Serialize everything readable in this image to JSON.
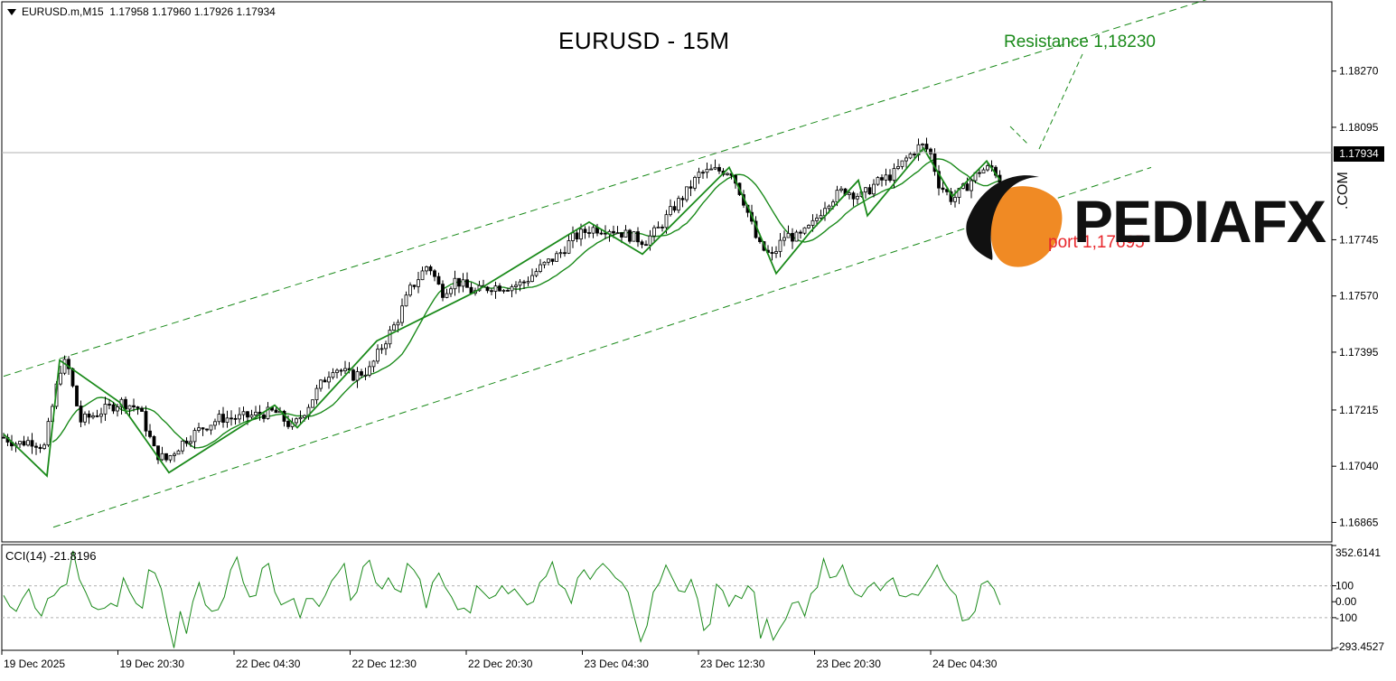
{
  "header": {
    "symbol_info": "EURUSD.m,M15  1.17958 1.17960 1.17926 1.17934",
    "title": "EURUSD - 15M"
  },
  "annotations": {
    "resistance": "Resistance 1,18230",
    "support": "port 1,17695"
  },
  "logo": {
    "brand": "PEDIAFX",
    "suffix": ".COM",
    "accent_color": "#f08a24"
  },
  "indicator": {
    "label": "CCI(14) -21.8196"
  },
  "current_price": "1.17934",
  "colors": {
    "bull": "#ffffff",
    "bear": "#000000",
    "wick": "#000000",
    "ma": "#1a8a1a",
    "channel": "#1a8a1a",
    "cci": "#1a8a1a",
    "resistance": "#1a8a1a",
    "support": "#e8262b"
  },
  "chart_data": [
    {
      "type": "candlestick",
      "title": "EURUSD - 15M",
      "price_axis_ticks": [
        "1.18270",
        "1.18095",
        "1.17934",
        "1.17745",
        "1.17570",
        "1.17395",
        "1.17215",
        "1.17040",
        "1.16865"
      ],
      "time_axis_labels": [
        "19 Dec 2025",
        "19 Dec 20:30",
        "22 Dec 04:30",
        "22 Dec 12:30",
        "22 Dec 20:30",
        "23 Dec 04:30",
        "23 Dec 12:30",
        "23 Dec 20:30",
        "24 Dec 04:30"
      ],
      "ylim": [
        1.1681,
        1.1848
      ],
      "last_price": 1.17934,
      "key_levels": {
        "resistance": 1.1823,
        "support": 1.17695
      },
      "price_path": [
        [
          0,
          1.1713
        ],
        [
          15,
          1.1711
        ],
        [
          30,
          1.1712
        ],
        [
          45,
          1.171
        ],
        [
          58,
          1.1728
        ],
        [
          65,
          1.1737
        ],
        [
          72,
          1.1734
        ],
        [
          85,
          1.1718
        ],
        [
          100,
          1.172
        ],
        [
          115,
          1.1722
        ],
        [
          130,
          1.1724
        ],
        [
          150,
          1.1722
        ],
        [
          168,
          1.1708
        ],
        [
          180,
          1.1706
        ],
        [
          200,
          1.1712
        ],
        [
          220,
          1.1716
        ],
        [
          240,
          1.1719
        ],
        [
          260,
          1.1719
        ],
        [
          280,
          1.172
        ],
        [
          300,
          1.1721
        ],
        [
          320,
          1.1716
        ],
        [
          335,
          1.1722
        ],
        [
          350,
          1.1729
        ],
        [
          365,
          1.1735
        ],
        [
          385,
          1.1732
        ],
        [
          405,
          1.1734
        ],
        [
          420,
          1.1742
        ],
        [
          435,
          1.1749
        ],
        [
          450,
          1.1759
        ],
        [
          470,
          1.1767
        ],
        [
          485,
          1.1758
        ],
        [
          500,
          1.1762
        ],
        [
          520,
          1.1758
        ],
        [
          540,
          1.176
        ],
        [
          560,
          1.176
        ],
        [
          575,
          1.1761
        ],
        [
          595,
          1.1766
        ],
        [
          615,
          1.177
        ],
        [
          630,
          1.1775
        ],
        [
          650,
          1.1778
        ],
        [
          670,
          1.1778
        ],
        [
          690,
          1.1776
        ],
        [
          710,
          1.1774
        ],
        [
          725,
          1.1778
        ],
        [
          740,
          1.1784
        ],
        [
          755,
          1.1789
        ],
        [
          770,
          1.1795
        ],
        [
          785,
          1.1796
        ],
        [
          805,
          1.1796
        ],
        [
          820,
          1.1786
        ],
        [
          835,
          1.1773
        ],
        [
          850,
          1.1769
        ],
        [
          865,
          1.1776
        ],
        [
          880,
          1.1775
        ],
        [
          895,
          1.1779
        ],
        [
          910,
          1.1786
        ],
        [
          930,
          1.179
        ],
        [
          950,
          1.1788
        ],
        [
          965,
          1.1792
        ],
        [
          985,
          1.1795
        ],
        [
          1000,
          1.18
        ],
        [
          1015,
          1.1804
        ],
        [
          1025,
          1.1802
        ],
        [
          1035,
          1.1792
        ],
        [
          1050,
          1.1787
        ],
        [
          1065,
          1.1791
        ],
        [
          1080,
          1.1796
        ],
        [
          1095,
          1.1797
        ],
        [
          1103,
          1.1793
        ]
      ],
      "zigzag": [
        [
          0,
          1.1714
        ],
        [
          48,
          1.1701
        ],
        [
          62,
          1.1737
        ],
        [
          128,
          1.1724
        ],
        [
          183,
          1.1702
        ],
        [
          300,
          1.1723
        ],
        [
          325,
          1.1716
        ],
        [
          413,
          1.1743
        ],
        [
          520,
          1.1758
        ],
        [
          648,
          1.178
        ],
        [
          707,
          1.177
        ],
        [
          803,
          1.1797
        ],
        [
          825,
          1.1784
        ],
        [
          855,
          1.1764
        ],
        [
          893,
          1.1777
        ],
        [
          946,
          1.1793
        ],
        [
          956,
          1.1782
        ],
        [
          1018,
          1.1803
        ],
        [
          1050,
          1.1788
        ],
        [
          1088,
          1.1799
        ],
        [
          1103,
          1.1793
        ]
      ],
      "channel": {
        "upper": [
          [
            0,
            1.1732
          ],
          [
            1340,
            1.185
          ]
        ],
        "lower": [
          [
            55,
            1.1685
          ],
          [
            1270,
            1.1797
          ]
        ],
        "lower_bound_dashed_end": [
          1270,
          1.1797
        ]
      }
    },
    {
      "type": "line",
      "title": "CCI(14) -21.8196",
      "series": [
        {
          "values": [
            40,
            -30,
            -60,
            20,
            80,
            -40,
            -90,
            20,
            40,
            90,
            110,
            320,
            140,
            60,
            -30,
            -50,
            -40,
            -10,
            -30,
            150,
            60,
            -10,
            -40,
            200,
            180,
            80,
            -120,
            -290,
            -60,
            -200,
            0,
            120,
            -20,
            -60,
            -50,
            30,
            200,
            280,
            120,
            30,
            40,
            210,
            240,
            60,
            -20,
            0,
            20,
            -100,
            20,
            20,
            -30,
            40,
            130,
            180,
            240,
            10,
            60,
            220,
            260,
            120,
            80,
            150,
            80,
            60,
            240,
            200,
            140,
            -40,
            120,
            180,
            90,
            30,
            -50,
            -40,
            -70,
            100,
            60,
            20,
            40,
            100,
            50,
            80,
            30,
            -20,
            0,
            120,
            160,
            250,
            110,
            80,
            -10,
            150,
            200,
            140,
            200,
            240,
            200,
            150,
            120,
            60,
            -100,
            -250,
            -150,
            60,
            120,
            230,
            150,
            70,
            60,
            140,
            20,
            -180,
            -140,
            110,
            70,
            -30,
            40,
            20,
            100,
            60,
            -230,
            -110,
            -240,
            -170,
            -110,
            -10,
            0,
            -90,
            50,
            90,
            270,
            150,
            160,
            230,
            110,
            50,
            30,
            90,
            120,
            70,
            120,
            150,
            40,
            30,
            50,
            40,
            100,
            160,
            230,
            140,
            80,
            40,
            -120,
            -110,
            -60,
            110,
            130,
            80,
            -20
          ],
          "scale_min": -293.4527,
          "scale_max": 352.6141
        }
      ],
      "axis_ticks": [
        "352.6141",
        "100",
        "0.00",
        "-100",
        "-293.4527"
      ]
    }
  ]
}
